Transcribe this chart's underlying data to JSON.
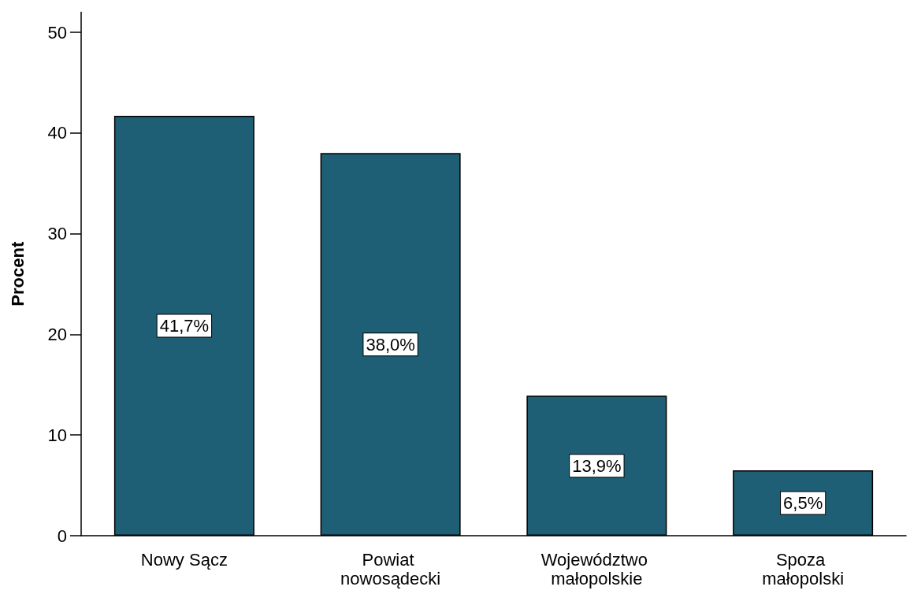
{
  "chart_data": {
    "type": "bar",
    "ylabel": "Procent",
    "categories": [
      "Nowy Sącz",
      "Powiat nowosądecki",
      "Województwo małopolskie",
      "Spoza małopolski"
    ],
    "values": [
      41.7,
      38.0,
      13.9,
      6.5
    ],
    "value_labels": [
      "41,7%",
      "38,0%",
      "13,9%",
      "6,5%"
    ],
    "color": "#1f5f75",
    "ylim": [
      0,
      52
    ],
    "yticks": [
      0,
      10,
      20,
      30,
      40,
      50
    ],
    "grid": false
  }
}
